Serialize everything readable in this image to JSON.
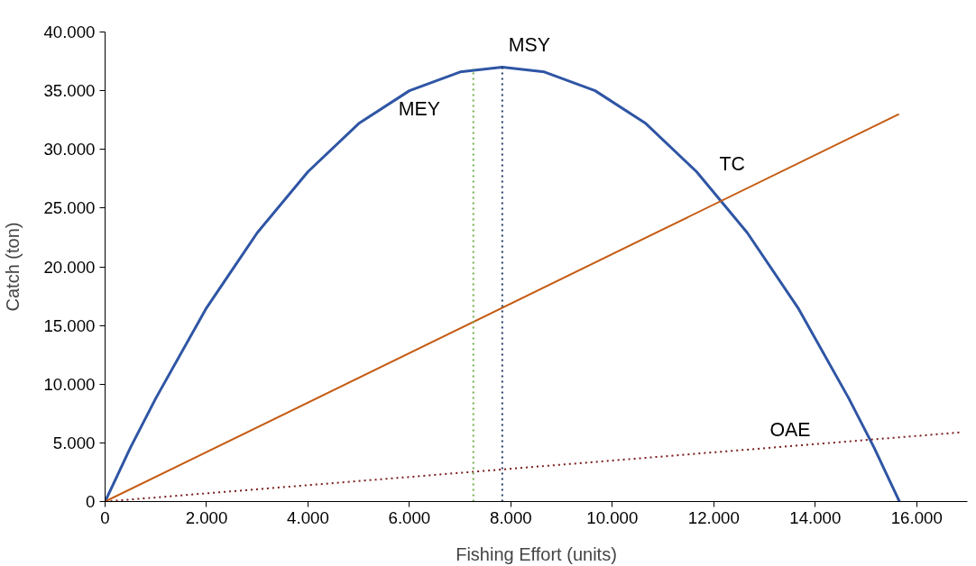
{
  "chart_data": {
    "type": "line",
    "xlabel": "Fishing Effort (units)",
    "ylabel": "Catch (ton)",
    "xlim": [
      0,
      17000
    ],
    "ylim": [
      0,
      40000
    ],
    "xticks": [
      0,
      {
        "value": 2000,
        "label": "2.000"
      },
      {
        "value": 4000,
        "label": "4.000"
      },
      {
        "value": 6000,
        "label": "6.000"
      },
      {
        "value": 8000,
        "label": "8.000"
      },
      {
        "value": 10000,
        "label": "10.000"
      },
      {
        "value": 12000,
        "label": "12.000"
      },
      {
        "value": 14000,
        "label": "14.000"
      },
      {
        "value": 16000,
        "label": "16.000"
      }
    ],
    "yticks": [
      0,
      {
        "value": 5000,
        "label": "5.000"
      },
      {
        "value": 10000,
        "label": "10.000"
      },
      {
        "value": 15000,
        "label": "15.000"
      },
      {
        "value": 20000,
        "label": "20.000"
      },
      {
        "value": 25000,
        "label": "25.000"
      },
      {
        "value": 30000,
        "label": "30.000"
      },
      {
        "value": 35000,
        "label": "35.000"
      },
      {
        "value": 40000,
        "label": "40.000"
      }
    ],
    "grid": false,
    "series": [
      {
        "color": "#2f55a4",
        "line_style": "solid",
        "x": [
          0,
          250,
          500,
          1000,
          2000,
          3000,
          4000,
          5000,
          6000,
          7000,
          7830,
          8660,
          9660,
          10660,
          11660,
          12660,
          13660,
          14660,
          15160,
          15410,
          15660
        ],
        "values": [
          0,
          2300,
          4600,
          8800,
          16500,
          22900,
          28100,
          32200,
          35000,
          36600,
          37000,
          36600,
          35000,
          32200,
          28100,
          22900,
          16500,
          8800,
          4600,
          2300,
          0
        ]
      },
      {
        "name": "TC",
        "color": "#c55a11",
        "line_style": "solid",
        "x": [
          0,
          15650
        ],
        "values": [
          0,
          33000
        ]
      },
      {
        "name": "OAE",
        "color": "#7b1c1c",
        "line_style": "dotted",
        "x": [
          0,
          16880
        ],
        "values": [
          0,
          5900
        ]
      },
      {
        "name": "MEY",
        "color": "#70ad47",
        "line_style": "dotted",
        "x": [
          7260,
          7260
        ],
        "values": [
          0,
          36900
        ]
      },
      {
        "name": "MSY",
        "color": "#1f3864",
        "line_style": "dotted",
        "x": [
          7830,
          7830
        ],
        "values": [
          0,
          37000
        ]
      }
    ]
  }
}
